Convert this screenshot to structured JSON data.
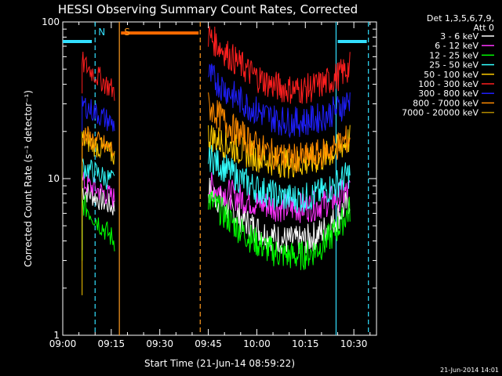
{
  "chart_data": {
    "type": "line",
    "title": "HESSI Observing Summary Count Rates, Corrected",
    "xlabel": "Start Time (21-Jun-14 08:59:22)",
    "ylabel": "Corrected Count Rate (s⁻¹ detector⁻¹)",
    "y_scale": "log",
    "ylim": [
      1,
      100
    ],
    "xlim": [
      "09:00",
      "10:37"
    ],
    "x_ticks": [
      "09:00",
      "09:15",
      "09:30",
      "09:45",
      "10:00",
      "10:15",
      "10:30"
    ],
    "y_ticks": [
      "1",
      "10",
      "100"
    ],
    "legend": {
      "header": [
        "Det 1,3,5,6,7,9,",
        "Att 0"
      ],
      "placement": "right"
    },
    "footer_date": "21-Jun-2014 14:01",
    "markers": [
      {
        "label": "N",
        "color": "#33e0ff",
        "time": "09:10"
      },
      {
        "label": "S",
        "color": "#ff9a1f",
        "time": "09:18"
      }
    ],
    "vlines": [
      {
        "time": "09:10",
        "color": "#33e0ff",
        "style": "dashed"
      },
      {
        "time": "09:17.5",
        "color": "#ff9a1f",
        "style": "solid"
      },
      {
        "time": "09:42.5",
        "color": "#ff9a1f",
        "style": "dashed"
      },
      {
        "time": "10:24.5",
        "color": "#33e0ff",
        "style": "solid"
      },
      {
        "time": "10:34.5",
        "color": "#33e0ff",
        "style": "dashed"
      }
    ],
    "hbars": [
      {
        "start": "09:00",
        "end": "09:09",
        "value": 75,
        "color": "#33e0ff"
      },
      {
        "start": "09:18",
        "end": "09:42",
        "value": 85,
        "color": "#ff6a00"
      },
      {
        "start": "10:25",
        "end": "10:34",
        "value": 75,
        "color": "#33e0ff"
      }
    ],
    "series": [
      {
        "name": "3 - 6 keV",
        "color": "#ffffff",
        "min": 3.5,
        "max": 11,
        "seg1": [
          8.5,
          6.5
        ],
        "seg2": [
          8.5,
          4.0,
          7.5
        ]
      },
      {
        "name": "6 - 12 keV",
        "color": "#ff33ff",
        "min": 5,
        "max": 11,
        "seg1": [
          9.5,
          7.5
        ],
        "seg2": [
          9.0,
          6.5,
          8.5
        ]
      },
      {
        "name": "12 - 25 keV",
        "color": "#00ff00",
        "min": 3,
        "max": 9.5,
        "seg1": [
          7.0,
          4.0
        ],
        "seg2": [
          7.5,
          3.2,
          6.5
        ]
      },
      {
        "name": "25 - 50 keV",
        "color": "#33ffff",
        "min": 7,
        "max": 15,
        "seg1": [
          12,
          9.5
        ],
        "seg2": [
          14,
          7.5,
          11
        ]
      },
      {
        "name": "50 - 100 keV",
        "color": "#ffcc00",
        "min": 1.8,
        "max": 20,
        "seg1": [
          18,
          14
        ],
        "seg2": [
          19,
          12.5,
          18
        ]
      },
      {
        "name": "100 - 300 keV",
        "color": "#ff1f1f",
        "min": 35,
        "max": 85,
        "seg1": [
          55,
          36
        ],
        "seg2": [
          82,
          37,
          52
        ]
      },
      {
        "name": "300 - 800 keV",
        "color": "#1f1fff",
        "min": 20,
        "max": 48,
        "seg1": [
          30,
          22
        ],
        "seg2": [
          46,
          23,
          32
        ]
      },
      {
        "name": "800 - 7000 keV",
        "color": "#ff8c00",
        "min": 12,
        "max": 30,
        "seg1": [
          19,
          15
        ],
        "seg2": [
          29,
          13.5,
          18.5
        ]
      },
      {
        "name": "7000 - 20000 keV",
        "color": "#b38a00",
        "min": 1,
        "max": 1,
        "seg1": [],
        "seg2": []
      }
    ]
  }
}
